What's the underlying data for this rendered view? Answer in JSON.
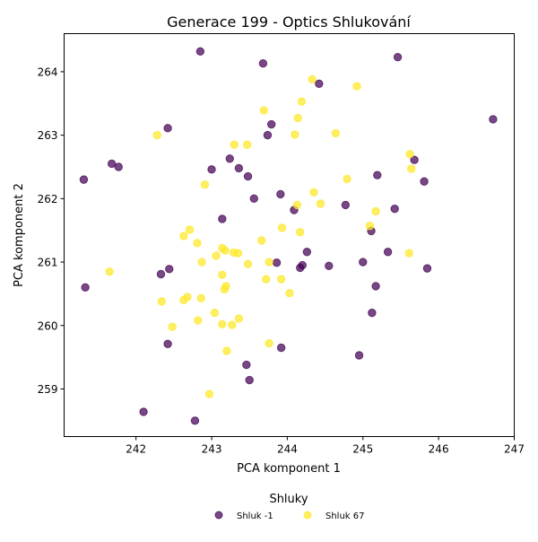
{
  "chart_data": {
    "type": "scatter",
    "title": "Generace 199 - Optics Shlukování",
    "xlabel": "PCA komponent 1",
    "ylabel": "PCA komponent 2",
    "xlim": [
      241.05,
      247.0
    ],
    "ylim": [
      258.25,
      264.6
    ],
    "xticks": [
      242,
      243,
      244,
      245,
      246,
      247
    ],
    "yticks": [
      259,
      260,
      261,
      262,
      263,
      264
    ],
    "legend": {
      "title": "Shluky",
      "placement": "bottom-center"
    },
    "grid": false,
    "series": [
      {
        "name": "Shluk -1",
        "color": "#440154",
        "points": [
          [
            242.85,
            264.32
          ],
          [
            243.68,
            264.13
          ],
          [
            245.46,
            264.23
          ],
          [
            244.42,
            263.81
          ],
          [
            246.72,
            263.25
          ],
          [
            242.42,
            263.11
          ],
          [
            243.79,
            263.17
          ],
          [
            243.74,
            263.0
          ],
          [
            241.68,
            262.55
          ],
          [
            241.77,
            262.5
          ],
          [
            243.24,
            262.63
          ],
          [
            243.0,
            262.46
          ],
          [
            243.36,
            262.48
          ],
          [
            245.68,
            262.61
          ],
          [
            241.31,
            262.3
          ],
          [
            243.48,
            262.35
          ],
          [
            245.19,
            262.37
          ],
          [
            245.81,
            262.27
          ],
          [
            243.91,
            262.07
          ],
          [
            243.56,
            262.0
          ],
          [
            244.09,
            261.82
          ],
          [
            244.77,
            261.9
          ],
          [
            245.42,
            261.84
          ],
          [
            243.14,
            261.68
          ],
          [
            245.11,
            261.49
          ],
          [
            244.26,
            261.16
          ],
          [
            245.33,
            261.16
          ],
          [
            243.86,
            260.99
          ],
          [
            244.2,
            260.95
          ],
          [
            244.17,
            260.91
          ],
          [
            244.55,
            260.94
          ],
          [
            245.0,
            261.0
          ],
          [
            245.85,
            260.9
          ],
          [
            242.44,
            260.89
          ],
          [
            242.33,
            260.81
          ],
          [
            241.33,
            260.6
          ],
          [
            245.17,
            260.62
          ],
          [
            245.12,
            260.2
          ],
          [
            242.42,
            259.71
          ],
          [
            243.92,
            259.65
          ],
          [
            244.95,
            259.53
          ],
          [
            243.46,
            259.38
          ],
          [
            243.5,
            259.14
          ],
          [
            242.1,
            258.64
          ],
          [
            242.78,
            258.5
          ]
        ]
      },
      {
        "name": "Shluk 67",
        "color": "#fde725",
        "points": [
          [
            244.33,
            263.88
          ],
          [
            244.92,
            263.77
          ],
          [
            244.19,
            263.53
          ],
          [
            243.69,
            263.39
          ],
          [
            244.14,
            263.27
          ],
          [
            242.28,
            263.0
          ],
          [
            244.1,
            263.01
          ],
          [
            244.64,
            263.03
          ],
          [
            243.3,
            262.85
          ],
          [
            243.47,
            262.85
          ],
          [
            245.62,
            262.7
          ],
          [
            245.64,
            262.47
          ],
          [
            244.79,
            262.31
          ],
          [
            242.91,
            262.22
          ],
          [
            244.35,
            262.1
          ],
          [
            244.13,
            261.9
          ],
          [
            244.44,
            261.92
          ],
          [
            245.17,
            261.8
          ],
          [
            243.93,
            261.54
          ],
          [
            245.09,
            261.57
          ],
          [
            242.71,
            261.51
          ],
          [
            244.17,
            261.47
          ],
          [
            242.63,
            261.41
          ],
          [
            243.66,
            261.34
          ],
          [
            242.81,
            261.3
          ],
          [
            243.14,
            261.22
          ],
          [
            243.18,
            261.18
          ],
          [
            243.29,
            261.15
          ],
          [
            243.35,
            261.14
          ],
          [
            245.61,
            261.14
          ],
          [
            243.06,
            261.1
          ],
          [
            242.87,
            261.0
          ],
          [
            243.48,
            260.97
          ],
          [
            243.76,
            261.0
          ],
          [
            241.65,
            260.85
          ],
          [
            243.14,
            260.8
          ],
          [
            243.72,
            260.73
          ],
          [
            243.92,
            260.73
          ],
          [
            243.19,
            260.62
          ],
          [
            243.17,
            260.57
          ],
          [
            244.03,
            260.51
          ],
          [
            242.86,
            260.43
          ],
          [
            242.68,
            260.45
          ],
          [
            242.63,
            260.4
          ],
          [
            242.34,
            260.38
          ],
          [
            243.04,
            260.2
          ],
          [
            243.36,
            260.11
          ],
          [
            242.82,
            260.08
          ],
          [
            243.14,
            260.02
          ],
          [
            243.27,
            260.01
          ],
          [
            242.48,
            259.98
          ],
          [
            243.76,
            259.72
          ],
          [
            243.2,
            259.6
          ],
          [
            242.97,
            258.92
          ]
        ]
      }
    ]
  }
}
